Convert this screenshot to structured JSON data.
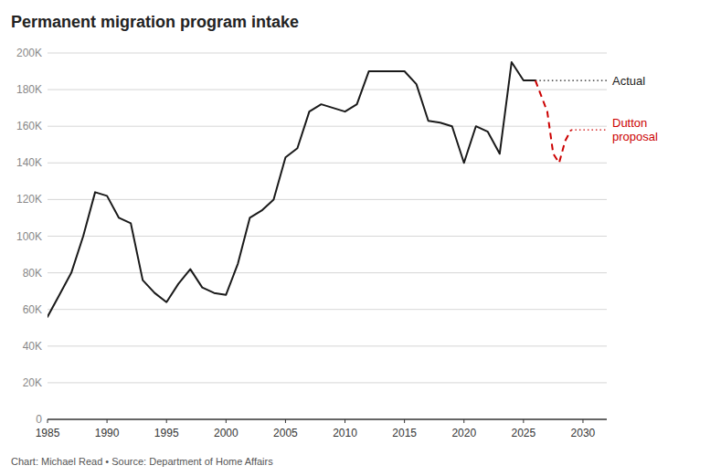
{
  "chart_data": {
    "type": "line",
    "title": "Permanent migration program intake",
    "footnote": "Chart: Michael Read • Source: Department of Home Affairs",
    "series": [
      {
        "name": "Actual",
        "color": "#1a1a1a",
        "line_style": "solid",
        "x": [
          1985,
          1986,
          1987,
          1988,
          1989,
          1990,
          1991,
          1992,
          1993,
          1994,
          1995,
          1996,
          1997,
          1998,
          1999,
          2000,
          2001,
          2002,
          2003,
          2004,
          2005,
          2006,
          2007,
          2008,
          2009,
          2010,
          2011,
          2012,
          2013,
          2014,
          2015,
          2016,
          2017,
          2018,
          2019,
          2020,
          2021,
          2022,
          2023,
          2024,
          2025,
          2026
        ],
        "values": [
          56000,
          68000,
          80000,
          100000,
          124000,
          122000,
          110000,
          107000,
          76000,
          69000,
          64000,
          74000,
          82000,
          72000,
          69000,
          68000,
          85000,
          110000,
          114000,
          120000,
          143000,
          148000,
          168000,
          172000,
          170000,
          168000,
          172000,
          190000,
          190000,
          190000,
          190000,
          183000,
          163000,
          162000,
          160000,
          140000,
          160000,
          157000,
          145000,
          195000,
          185000,
          185000
        ]
      },
      {
        "name": "Dutton\nproposal",
        "color": "#cc0000",
        "line_style": "dashed",
        "x": [
          2026,
          2027,
          2027.5,
          2028,
          2028.5,
          2029
        ],
        "values": [
          185000,
          168000,
          145000,
          140000,
          152000,
          158000
        ]
      }
    ],
    "xlim": [
      1985,
      2032
    ],
    "ylim": [
      0,
      200000
    ],
    "xticks": [
      1985,
      1990,
      1995,
      2000,
      2005,
      2010,
      2015,
      2020,
      2025,
      2030
    ],
    "yticks": [
      0,
      {
        "value": 20000,
        "label": "20K"
      },
      {
        "value": 40000,
        "label": "40K"
      },
      {
        "value": 60000,
        "label": "60K"
      },
      {
        "value": 80000,
        "label": "80K"
      },
      {
        "value": 100000,
        "label": "100K"
      },
      {
        "value": 120000,
        "label": "120K"
      },
      {
        "value": 140000,
        "label": "140K"
      },
      {
        "value": 160000,
        "label": "160K"
      },
      {
        "value": 180000,
        "label": "180K"
      },
      {
        "value": 200000,
        "label": "200K"
      }
    ],
    "grid": true
  }
}
